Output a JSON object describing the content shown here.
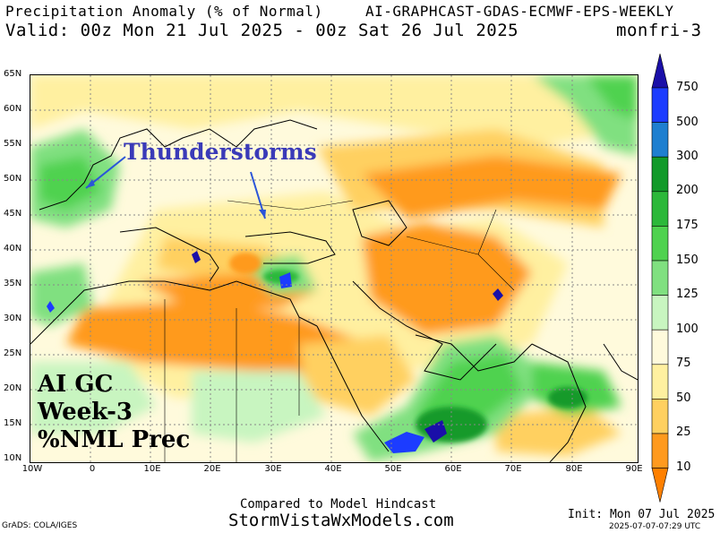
{
  "header": {
    "title": "Precipitation Anomaly (% of Normal)",
    "model": "AI-GRAPHCAST-GDAS-ECMWF-EPS-WEEKLY",
    "valid": "Valid: 00z Mon 21 Jul 2025 - 00z Sat 26 Jul 2025",
    "run": "monfri-3"
  },
  "axes": {
    "lat_labels": [
      "65N",
      "60N",
      "55N",
      "50N",
      "45N",
      "40N",
      "35N",
      "30N",
      "25N",
      "20N",
      "15N",
      "10N"
    ],
    "lon_labels": [
      "10W",
      "0",
      "10E",
      "20E",
      "30E",
      "40E",
      "50E",
      "60E",
      "70E",
      "80E",
      "90E"
    ]
  },
  "colorbar": {
    "labels": [
      "750",
      "500",
      "300",
      "200",
      "175",
      "150",
      "125",
      "100",
      "75",
      "50",
      "25",
      "10"
    ],
    "colors": [
      "#1a0fa8",
      "#1c3cff",
      "#1e7fd0",
      "#129a2a",
      "#2cb83a",
      "#4fd24f",
      "#80e080",
      "#c8f5c0",
      "#fffadc",
      "#fff0a0",
      "#ffd060",
      "#ff9a1e",
      "#ff8000"
    ]
  },
  "annotations": {
    "storm_label": "Thunderstorms",
    "box_line1": "AI GC",
    "box_line2": "Week-3",
    "box_line3": "%NML Prec"
  },
  "footer": {
    "compared": "Compared to Model Hindcast",
    "site": "StormVistaWxModels.com",
    "credit": "GrADS: COLA/IGES",
    "init": "Init: Mon 07 Jul 2025",
    "timestamp": "2025-07-07-07:29 UTC"
  }
}
